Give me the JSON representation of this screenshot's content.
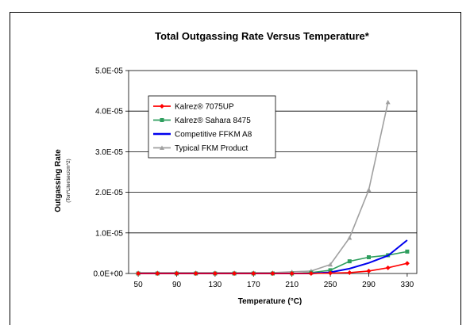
{
  "chart_data": {
    "type": "line",
    "title": "Total Outgassing Rate Versus Temperature*",
    "xlabel": "Temperature (°C)",
    "ylabel": "Outgassing Rate",
    "ylabel_sub": "(Torr*Liter/sec/cm^2)",
    "x": [
      50,
      70,
      90,
      110,
      130,
      150,
      170,
      190,
      210,
      230,
      250,
      270,
      290,
      310,
      330
    ],
    "x_ticks": [
      "50",
      "90",
      "130",
      "170",
      "210",
      "250",
      "290",
      "330"
    ],
    "x_tick_values": [
      50,
      90,
      130,
      170,
      210,
      250,
      290,
      330
    ],
    "xlim": [
      40,
      340
    ],
    "y_ticks": [
      "0.0E+00",
      "1.0E-05",
      "2.0E-05",
      "3.0E-05",
      "4.0E-05",
      "5.0E-05"
    ],
    "y_tick_values": [
      0,
      1e-05,
      2e-05,
      3e-05,
      4e-05,
      5e-05
    ],
    "ylim": [
      0,
      5e-05
    ],
    "grid": "horizontal",
    "legend_position": "upper-left",
    "series": [
      {
        "name": "Kalrez® 7075UP",
        "color": "#ff0000",
        "marker": "diamond",
        "values": [
          0,
          0,
          0,
          0,
          0,
          0,
          0,
          0,
          0,
          0,
          1e-07,
          2e-07,
          6e-07,
          1.4e-06,
          2.5e-06
        ]
      },
      {
        "name": "Kalrez® Sahara 8475",
        "color": "#2e9e5e",
        "marker": "square",
        "values": [
          0,
          0,
          0,
          0,
          0,
          0,
          0,
          0,
          0,
          2e-07,
          8e-07,
          3e-06,
          4e-06,
          4.5e-06,
          5.4e-06
        ]
      },
      {
        "name": "Competitive FFKM A8",
        "color": "#0000ee",
        "marker": "none",
        "values": [
          0,
          0,
          0,
          0,
          0,
          0,
          0,
          0,
          0,
          0,
          3e-07,
          1.2e-06,
          2.6e-06,
          4.4e-06,
          8.2e-06
        ]
      },
      {
        "name": "Typical FKM Product",
        "color": "#a0a0a0",
        "marker": "triangle",
        "values": [
          2e-07,
          2e-07,
          2e-07,
          2e-07,
          2e-07,
          2e-07,
          2e-07,
          2e-07,
          4e-07,
          6e-07,
          2.2e-06,
          8.8e-06,
          2.06e-05,
          4.22e-05,
          null
        ]
      }
    ]
  }
}
